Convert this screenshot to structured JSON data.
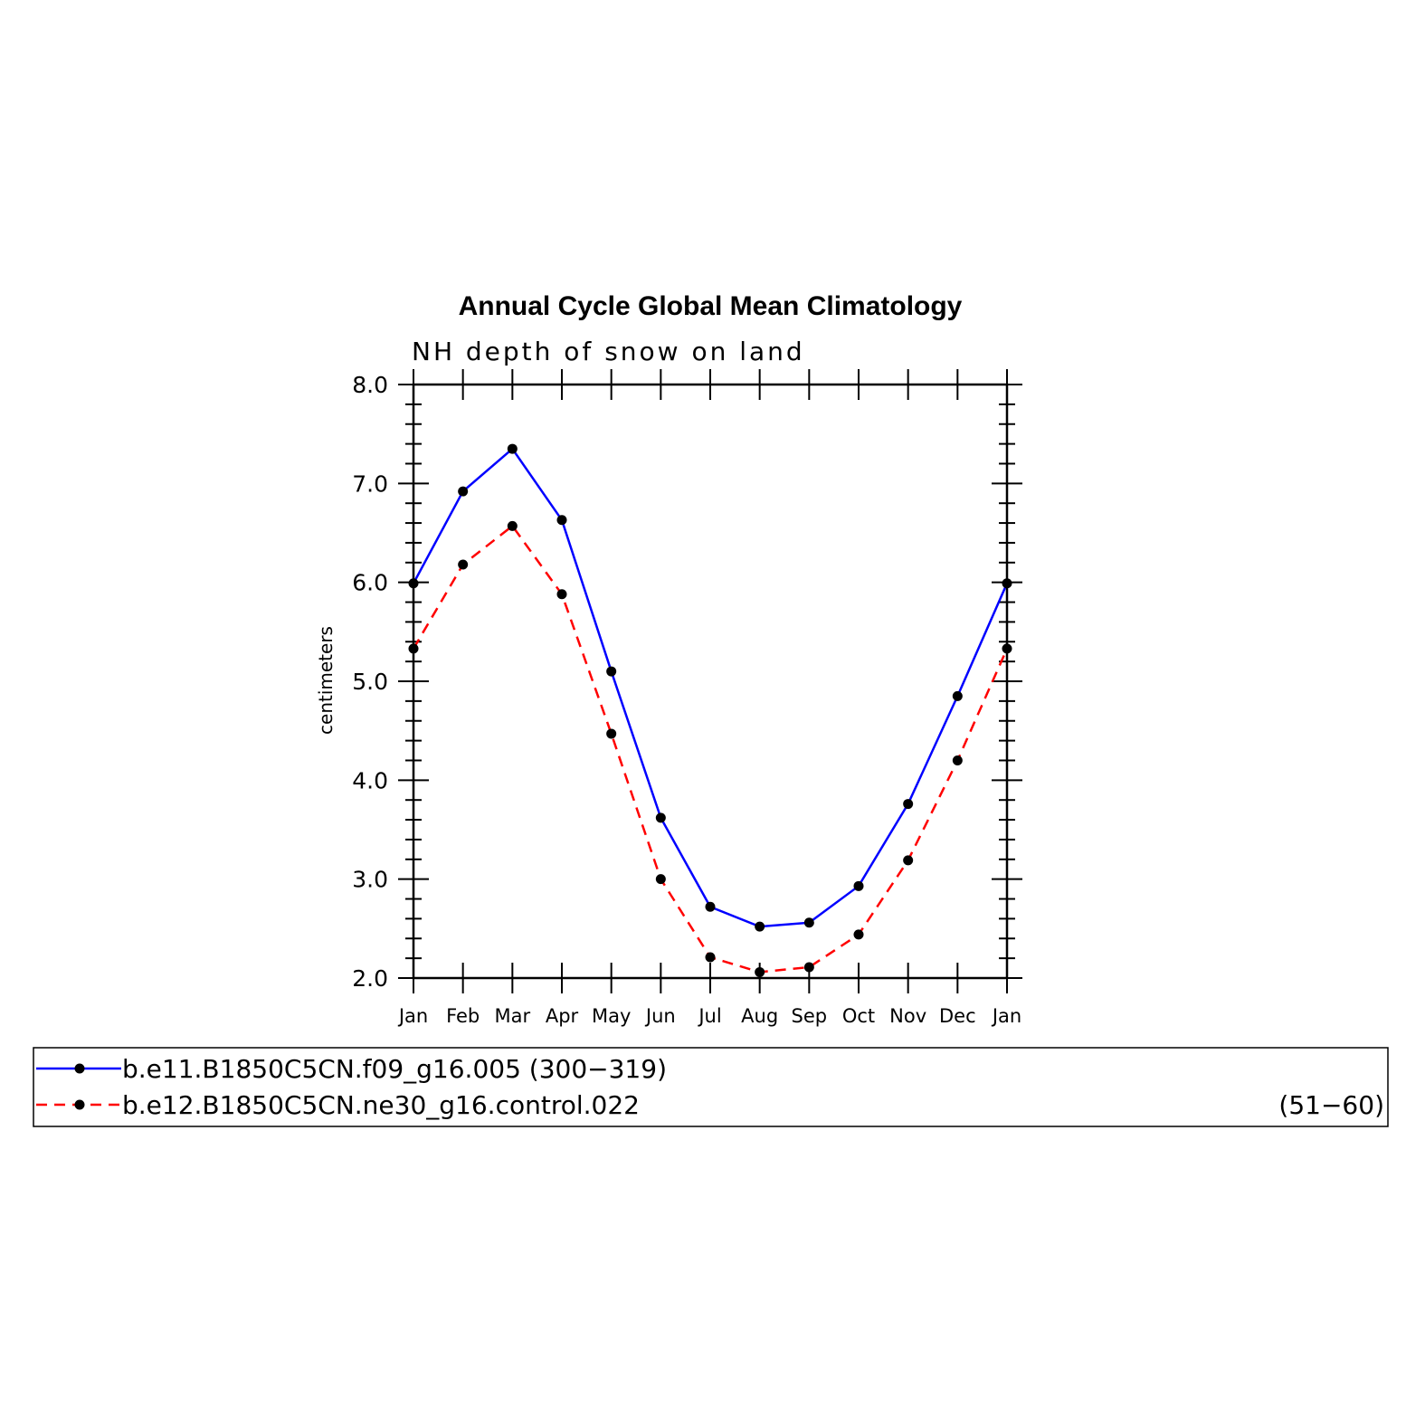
{
  "chart_data": {
    "type": "line",
    "title": "Annual Cycle Global Mean Climatology",
    "subtitle": "NH depth of snow on land",
    "xlabel": "",
    "ylabel": "centimeters",
    "categories": [
      "Jan",
      "Feb",
      "Mar",
      "Apr",
      "May",
      "Jun",
      "Jul",
      "Aug",
      "Sep",
      "Oct",
      "Nov",
      "Dec",
      "Jan"
    ],
    "ylim": [
      2.0,
      8.0
    ],
    "yticks": [
      "2.0",
      "3.0",
      "4.0",
      "5.0",
      "6.0",
      "7.0",
      "8.0"
    ],
    "grid": false,
    "legend_position": "bottom",
    "series": [
      {
        "name": "b.e11.B1850C5CN.f09_g16.005 (300−319)",
        "years": "",
        "color": "#0000ff",
        "dash": "solid",
        "values": [
          5.99,
          6.92,
          7.35,
          6.63,
          5.1,
          3.62,
          2.72,
          2.52,
          2.56,
          2.93,
          3.76,
          4.85,
          5.99
        ]
      },
      {
        "name": "b.e12.B1850C5CN.ne30_g16.control.022",
        "years": "(51−60)",
        "color": "#ff0000",
        "dash": "dashed",
        "values": [
          5.33,
          6.18,
          6.57,
          5.88,
          4.47,
          3.0,
          2.21,
          2.06,
          2.11,
          2.44,
          3.19,
          4.2,
          5.33
        ]
      }
    ]
  }
}
